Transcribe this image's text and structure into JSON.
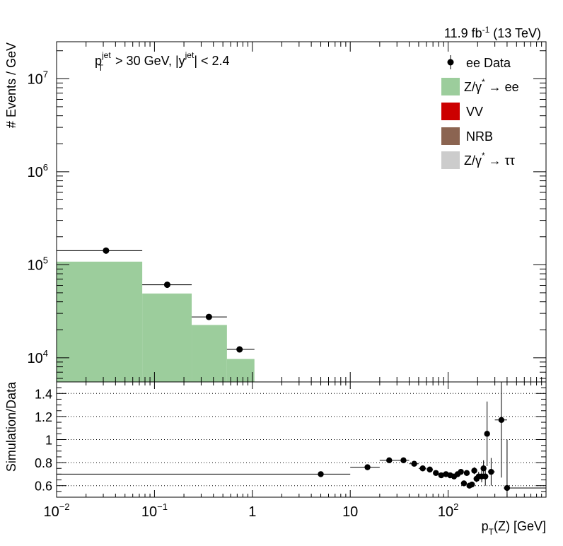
{
  "chart_data": [
    {
      "type": "histogram",
      "panel": "top",
      "lumi_label": {
        "value": "11.9 fb",
        "sup": "-1",
        "rest": " (13 TeV)"
      },
      "cut_label": {
        "pt_main": "p",
        "pt_sub": "T",
        "pt_sup": "jet",
        "mid": " > 30 GeV,  |y",
        "y_sup": "jet",
        "end": "| < 2.4"
      },
      "ylabel": "# Events / GeV",
      "x_scale": "log",
      "y_scale": "log",
      "xlim": [
        0.01,
        1000
      ],
      "ylim": [
        5500,
        25000000
      ],
      "y_ticks": [
        {
          "value": 10000,
          "base": "10",
          "exp": "4"
        },
        {
          "value": 100000,
          "base": "10",
          "exp": "5"
        },
        {
          "value": 1000000,
          "base": "10",
          "exp": "6"
        },
        {
          "value": 10000000,
          "base": "10",
          "exp": "7"
        }
      ],
      "mc_bins": [
        {
          "lo": 0.01,
          "hi": 0.075,
          "value": 108000
        },
        {
          "lo": 0.075,
          "hi": 0.24,
          "value": 49000
        },
        {
          "lo": 0.24,
          "hi": 0.55,
          "value": 22500
        },
        {
          "lo": 0.55,
          "hi": 1.05,
          "value": 9700
        }
      ],
      "data_points": [
        {
          "x": 0.032,
          "xlo": 0.01,
          "xhi": 0.075,
          "y": 142000
        },
        {
          "x": 0.135,
          "xlo": 0.075,
          "xhi": 0.24,
          "y": 61000
        },
        {
          "x": 0.36,
          "xlo": 0.24,
          "xhi": 0.55,
          "y": 27500
        },
        {
          "x": 0.74,
          "xlo": 0.55,
          "xhi": 1.05,
          "y": 12300
        }
      ],
      "legend": [
        {
          "key": "data",
          "label": "ee Data",
          "color": "#000000"
        },
        {
          "key": "dy_ee",
          "label_main": "Z/γ",
          "label_sup": "*",
          "label_end": " → ee",
          "color": "#9ccd9c"
        },
        {
          "key": "vv",
          "label": "VV",
          "color": "#cc0000"
        },
        {
          "key": "nrb",
          "label": "NRB",
          "color": "#8b6451"
        },
        {
          "key": "dy_tautau",
          "label_main": "Z/γ",
          "label_sup": "*",
          "label_end": " → ττ",
          "color": "#cccccc"
        }
      ]
    },
    {
      "type": "scatter",
      "panel": "ratio",
      "ylabel": "Simulation/Data",
      "xlabel": {
        "main": "p",
        "sub": "T",
        "rest": "(Z) [GeV]"
      },
      "x_scale": "log",
      "xlim": [
        0.01,
        1000
      ],
      "ylim": [
        0.5,
        1.5
      ],
      "y_ticks": [
        {
          "value": 0.6,
          "label": "0.6"
        },
        {
          "value": 0.8,
          "label": "0.8"
        },
        {
          "value": 1.0,
          "label": "1"
        },
        {
          "value": 1.2,
          "label": "1.2"
        },
        {
          "value": 1.4,
          "label": "1.4"
        }
      ],
      "x_ticks": [
        {
          "value": 0.01,
          "base": "10",
          "exp": "−2"
        },
        {
          "value": 0.1,
          "base": "10",
          "exp": "−1"
        },
        {
          "value": 1,
          "label": "1"
        },
        {
          "value": 10,
          "label": "10"
        },
        {
          "value": 100,
          "base": "10",
          "exp": "2"
        }
      ],
      "grid": "horizontal",
      "points": [
        {
          "x": 5,
          "xlo": 0.01,
          "xhi": 10,
          "y": 0.7,
          "err": 0.0
        },
        {
          "x": 15,
          "xlo": 10,
          "xhi": 20,
          "y": 0.76,
          "err": 0.005
        },
        {
          "x": 25,
          "xlo": 20,
          "xhi": 30,
          "y": 0.82,
          "err": 0.005
        },
        {
          "x": 35,
          "xlo": 30,
          "xhi": 40,
          "y": 0.82,
          "err": 0.005
        },
        {
          "x": 45,
          "xlo": 40,
          "xhi": 50,
          "y": 0.79,
          "err": 0.005
        },
        {
          "x": 55,
          "xlo": 50,
          "xhi": 60,
          "y": 0.75,
          "err": 0.005
        },
        {
          "x": 65,
          "xlo": 60,
          "xhi": 70,
          "y": 0.74,
          "err": 0.005
        },
        {
          "x": 75,
          "xlo": 70,
          "xhi": 80,
          "y": 0.71,
          "err": 0.005
        },
        {
          "x": 85,
          "xlo": 80,
          "xhi": 90,
          "y": 0.69,
          "err": 0.01
        },
        {
          "x": 95,
          "xlo": 90,
          "xhi": 100,
          "y": 0.7,
          "err": 0.01
        },
        {
          "x": 105,
          "xlo": 100,
          "xhi": 110,
          "y": 0.69,
          "err": 0.01
        },
        {
          "x": 115,
          "xlo": 110,
          "xhi": 120,
          "y": 0.68,
          "err": 0.01
        },
        {
          "x": 125,
          "xlo": 120,
          "xhi": 130,
          "y": 0.7,
          "err": 0.01
        },
        {
          "x": 135,
          "xlo": 130,
          "xhi": 140,
          "y": 0.72,
          "err": 0.015
        },
        {
          "x": 145,
          "xlo": 140,
          "xhi": 150,
          "y": 0.62,
          "err": 0.015
        },
        {
          "x": 155,
          "xlo": 150,
          "xhi": 160,
          "y": 0.71,
          "err": 0.02
        },
        {
          "x": 165,
          "xlo": 160,
          "xhi": 170,
          "y": 0.6,
          "err": 0.02
        },
        {
          "x": 175,
          "xlo": 170,
          "xhi": 180,
          "y": 0.61,
          "err": 0.02
        },
        {
          "x": 185,
          "xlo": 180,
          "xhi": 190,
          "y": 0.73,
          "err": 0.03
        },
        {
          "x": 195,
          "xlo": 190,
          "xhi": 200,
          "y": 0.66,
          "err": 0.03
        },
        {
          "x": 205,
          "xlo": 200,
          "xhi": 215,
          "y": 0.68,
          "err": 0.04
        },
        {
          "x": 220,
          "xlo": 215,
          "xhi": 225,
          "y": 0.68,
          "err": 0.05
        },
        {
          "x": 230,
          "xlo": 225,
          "xhi": 235,
          "y": 0.75,
          "err": 0.07
        },
        {
          "x": 240,
          "xlo": 235,
          "xhi": 245,
          "y": 0.68,
          "err": 0.08
        },
        {
          "x": 250,
          "xlo": 245,
          "xhi": 255,
          "y": 1.05,
          "err": 0.28
        },
        {
          "x": 275,
          "xlo": 255,
          "xhi": 300,
          "y": 0.72,
          "err": 0.12
        },
        {
          "x": 350,
          "xlo": 300,
          "xhi": 400,
          "y": 1.17,
          "err": 0.5
        },
        {
          "x": 400,
          "xlo": 370,
          "xhi": 1000,
          "y": 0.58,
          "err": 0.42
        }
      ]
    }
  ]
}
